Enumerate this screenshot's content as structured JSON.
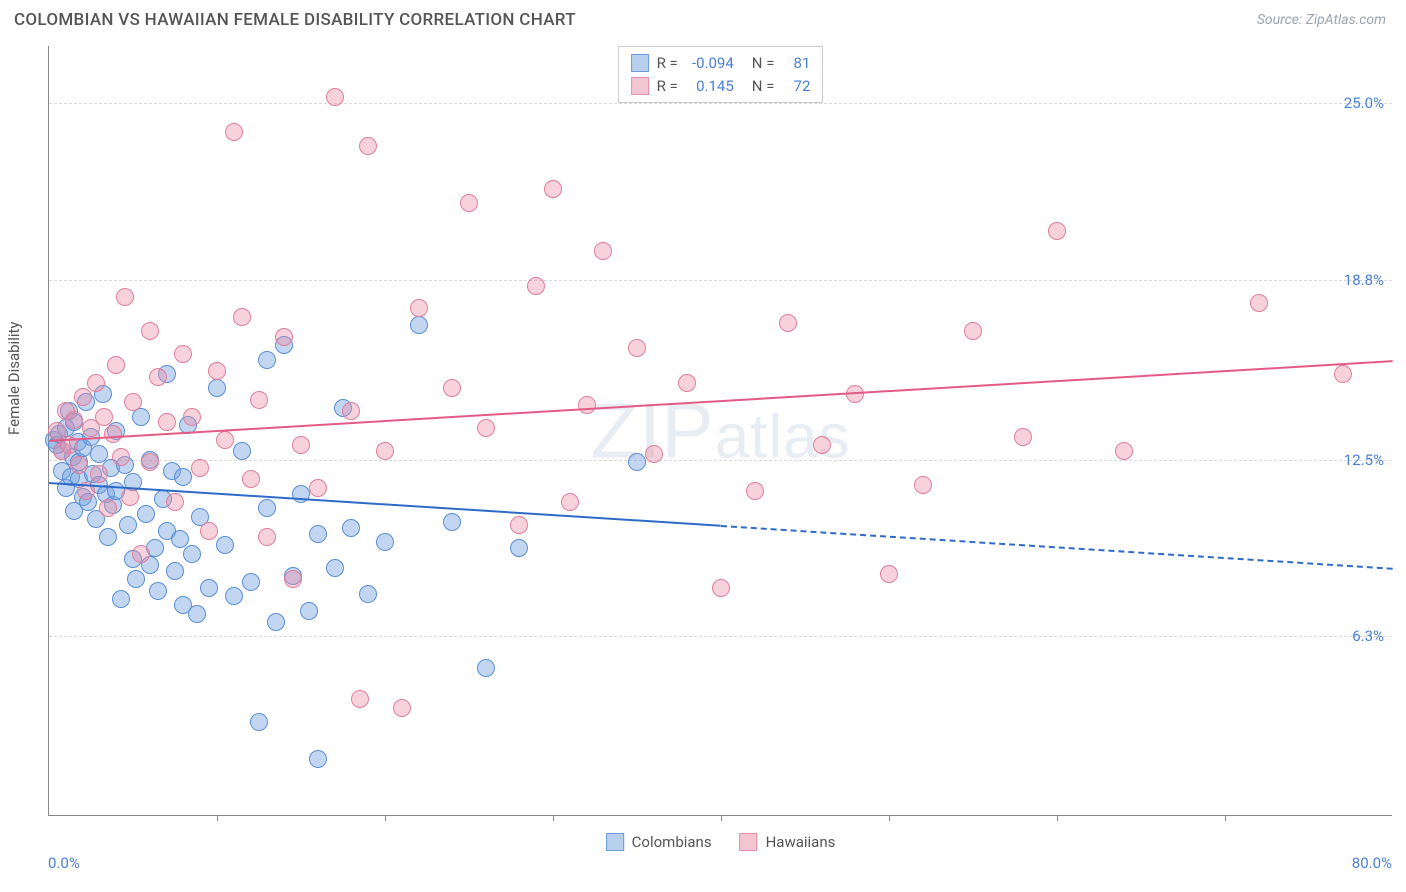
{
  "header": {
    "title": "COLOMBIAN VS HAWAIIAN FEMALE DISABILITY CORRELATION CHART",
    "source": "Source: ZipAtlas.com"
  },
  "chart": {
    "type": "scatter",
    "y_axis_title": "Female Disability",
    "watermark": "ZIPatlas",
    "background_color": "#ffffff",
    "grid_color": "#d8d8d8",
    "axis_color": "#888888",
    "xlim": [
      0,
      80
    ],
    "ylim": [
      0,
      27
    ],
    "x_tick_step": 10,
    "x_label_min": "0.0%",
    "x_label_max": "80.0%",
    "y_ticks": [
      {
        "v": 6.3,
        "label": "6.3%"
      },
      {
        "v": 12.5,
        "label": "12.5%"
      },
      {
        "v": 18.8,
        "label": "18.8%"
      },
      {
        "v": 25.0,
        "label": "25.0%"
      }
    ],
    "series": [
      {
        "name": "Colombians",
        "fill": "rgba(120,165,225,0.45)",
        "stroke": "#5a8fd6",
        "line_color": "#2e6bc7",
        "swatch_fill": "#b9d0ed",
        "swatch_border": "#6a9bda",
        "R": "-0.094",
        "N": "81",
        "marker_r": 9,
        "trend": {
          "x1": 0,
          "y1": 11.7,
          "x2": 40,
          "y2": 10.2,
          "dash_x2": 80,
          "dash_y2": 8.7
        },
        "points": [
          [
            0.3,
            13.2
          ],
          [
            0.5,
            13.0
          ],
          [
            0.6,
            13.4
          ],
          [
            0.8,
            12.1
          ],
          [
            0.8,
            12.8
          ],
          [
            1.0,
            13.6
          ],
          [
            1.0,
            11.5
          ],
          [
            1.2,
            14.2
          ],
          [
            1.3,
            11.9
          ],
          [
            1.4,
            12.6
          ],
          [
            1.5,
            13.8
          ],
          [
            1.5,
            10.7
          ],
          [
            1.7,
            13.1
          ],
          [
            1.8,
            11.8
          ],
          [
            1.8,
            12.4
          ],
          [
            2.0,
            12.9
          ],
          [
            2.0,
            11.2
          ],
          [
            2.2,
            14.5
          ],
          [
            2.3,
            11.0
          ],
          [
            2.5,
            13.3
          ],
          [
            2.6,
            12.0
          ],
          [
            2.8,
            10.4
          ],
          [
            3.0,
            11.6
          ],
          [
            3.0,
            12.7
          ],
          [
            3.2,
            14.8
          ],
          [
            3.4,
            11.3
          ],
          [
            3.5,
            9.8
          ],
          [
            3.7,
            12.2
          ],
          [
            3.8,
            10.9
          ],
          [
            4.0,
            13.5
          ],
          [
            4.0,
            11.4
          ],
          [
            4.3,
            7.6
          ],
          [
            4.5,
            12.3
          ],
          [
            4.7,
            10.2
          ],
          [
            5.0,
            9.0
          ],
          [
            5.0,
            11.7
          ],
          [
            5.2,
            8.3
          ],
          [
            5.5,
            14.0
          ],
          [
            5.8,
            10.6
          ],
          [
            6.0,
            12.5
          ],
          [
            6.0,
            8.8
          ],
          [
            6.3,
            9.4
          ],
          [
            6.5,
            7.9
          ],
          [
            6.8,
            11.1
          ],
          [
            7.0,
            15.5
          ],
          [
            7.0,
            10.0
          ],
          [
            7.3,
            12.1
          ],
          [
            7.5,
            8.6
          ],
          [
            7.8,
            9.7
          ],
          [
            8.0,
            7.4
          ],
          [
            8.0,
            11.9
          ],
          [
            8.3,
            13.7
          ],
          [
            8.5,
            9.2
          ],
          [
            8.8,
            7.1
          ],
          [
            9.0,
            10.5
          ],
          [
            9.5,
            8.0
          ],
          [
            10.0,
            15.0
          ],
          [
            10.5,
            9.5
          ],
          [
            11.0,
            7.7
          ],
          [
            11.5,
            12.8
          ],
          [
            12.0,
            8.2
          ],
          [
            12.5,
            3.3
          ],
          [
            13.0,
            10.8
          ],
          [
            13.0,
            16.0
          ],
          [
            13.5,
            6.8
          ],
          [
            14.0,
            16.5
          ],
          [
            14.5,
            8.4
          ],
          [
            15.0,
            11.3
          ],
          [
            15.5,
            7.2
          ],
          [
            16.0,
            9.9
          ],
          [
            16.0,
            2.0
          ],
          [
            17.0,
            8.7
          ],
          [
            17.5,
            14.3
          ],
          [
            18.0,
            10.1
          ],
          [
            19.0,
            7.8
          ],
          [
            20.0,
            9.6
          ],
          [
            22.0,
            17.2
          ],
          [
            24.0,
            10.3
          ],
          [
            26.0,
            5.2
          ],
          [
            28.0,
            9.4
          ],
          [
            35.0,
            12.4
          ]
        ]
      },
      {
        "name": "Hawaiians",
        "fill": "rgba(235,140,165,0.40)",
        "stroke": "#e07f9c",
        "line_color": "#e35a85",
        "swatch_fill": "#f3c4d2",
        "swatch_border": "#e68fa8",
        "R": "0.145",
        "N": "72",
        "marker_r": 9,
        "trend": {
          "x1": 0,
          "y1": 13.2,
          "x2": 80,
          "y2": 16.0
        },
        "points": [
          [
            0.5,
            13.5
          ],
          [
            0.8,
            12.8
          ],
          [
            1.0,
            14.2
          ],
          [
            1.2,
            13.0
          ],
          [
            1.5,
            13.9
          ],
          [
            1.8,
            12.3
          ],
          [
            2.0,
            14.7
          ],
          [
            2.2,
            11.4
          ],
          [
            2.5,
            13.6
          ],
          [
            2.8,
            15.2
          ],
          [
            3.0,
            12.0
          ],
          [
            3.3,
            14.0
          ],
          [
            3.5,
            10.8
          ],
          [
            3.8,
            13.4
          ],
          [
            4.0,
            15.8
          ],
          [
            4.3,
            12.6
          ],
          [
            4.5,
            18.2
          ],
          [
            4.8,
            11.2
          ],
          [
            5.0,
            14.5
          ],
          [
            5.5,
            9.2
          ],
          [
            6.0,
            17.0
          ],
          [
            6.0,
            12.4
          ],
          [
            6.5,
            15.4
          ],
          [
            7.0,
            13.8
          ],
          [
            7.5,
            11.0
          ],
          [
            8.0,
            16.2
          ],
          [
            8.5,
            14.0
          ],
          [
            9.0,
            12.2
          ],
          [
            9.5,
            10.0
          ],
          [
            10.0,
            15.6
          ],
          [
            10.5,
            13.2
          ],
          [
            11.0,
            24.0
          ],
          [
            11.5,
            17.5
          ],
          [
            12.0,
            11.8
          ],
          [
            12.5,
            14.6
          ],
          [
            13.0,
            9.8
          ],
          [
            14.0,
            16.8
          ],
          [
            14.5,
            8.3
          ],
          [
            15.0,
            13.0
          ],
          [
            16.0,
            11.5
          ],
          [
            17.0,
            25.2
          ],
          [
            18.0,
            14.2
          ],
          [
            18.5,
            4.1
          ],
          [
            19.0,
            23.5
          ],
          [
            20.0,
            12.8
          ],
          [
            21.0,
            3.8
          ],
          [
            22.0,
            17.8
          ],
          [
            24.0,
            15.0
          ],
          [
            25.0,
            21.5
          ],
          [
            26.0,
            13.6
          ],
          [
            28.0,
            10.2
          ],
          [
            29.0,
            18.6
          ],
          [
            30.0,
            22.0
          ],
          [
            31.0,
            11.0
          ],
          [
            32.0,
            14.4
          ],
          [
            33.0,
            19.8
          ],
          [
            35.0,
            16.4
          ],
          [
            36.0,
            12.7
          ],
          [
            38.0,
            15.2
          ],
          [
            40.0,
            8.0
          ],
          [
            42.0,
            11.4
          ],
          [
            44.0,
            17.3
          ],
          [
            46.0,
            13.0
          ],
          [
            48.0,
            14.8
          ],
          [
            50.0,
            8.5
          ],
          [
            52.0,
            11.6
          ],
          [
            55.0,
            17.0
          ],
          [
            58.0,
            13.3
          ],
          [
            60.0,
            20.5
          ],
          [
            64.0,
            12.8
          ],
          [
            72.0,
            18.0
          ],
          [
            77.0,
            15.5
          ]
        ]
      }
    ]
  }
}
